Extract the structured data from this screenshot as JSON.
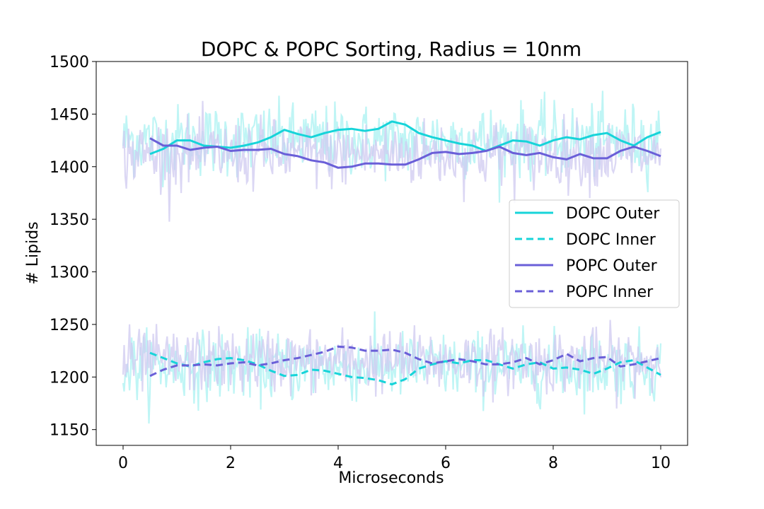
{
  "chart_data": {
    "type": "line",
    "title": "DOPC & POPC Sorting, Radius = 10nm",
    "xlabel": "Microseconds",
    "ylabel": "# Lipids",
    "xlim": [
      -0.5,
      10.5
    ],
    "ylim": [
      1135,
      1500
    ],
    "xticks": [
      "0",
      "2",
      "4",
      "6",
      "8",
      "10"
    ],
    "yticks": [
      "1150",
      "1200",
      "1250",
      "1300",
      "1350",
      "1400",
      "1450",
      "1500"
    ],
    "grid": false,
    "legend_position": "center-right",
    "colors": {
      "dopc": "#17d4d9",
      "popc": "#6a5fd8",
      "dopc_raw": "#aaf2f2",
      "popc_raw": "#cfc9f0"
    },
    "series": [
      {
        "name": "DOPC Outer",
        "style": "solid",
        "color": "#17d4d9",
        "x": [
          0.5,
          0.75,
          1.0,
          1.25,
          1.5,
          1.75,
          2.0,
          2.25,
          2.5,
          2.75,
          3.0,
          3.25,
          3.5,
          3.75,
          4.0,
          4.25,
          4.5,
          4.75,
          5.0,
          5.25,
          5.5,
          5.75,
          6.0,
          6.25,
          6.5,
          6.75,
          7.0,
          7.25,
          7.5,
          7.75,
          8.0,
          8.25,
          8.5,
          8.75,
          9.0,
          9.25,
          9.5,
          9.75,
          10.0
        ],
        "values": [
          1412,
          1417,
          1425,
          1425,
          1420,
          1419,
          1418,
          1420,
          1423,
          1428,
          1435,
          1431,
          1428,
          1432,
          1435,
          1436,
          1434,
          1436,
          1443,
          1440,
          1432,
          1428,
          1425,
          1422,
          1420,
          1415,
          1420,
          1425,
          1424,
          1420,
          1425,
          1428,
          1426,
          1430,
          1432,
          1425,
          1420,
          1428,
          1433
        ]
      },
      {
        "name": "DOPC Inner",
        "style": "dashed",
        "color": "#17d4d9",
        "x": [
          0.5,
          0.75,
          1.0,
          1.25,
          1.5,
          1.75,
          2.0,
          2.25,
          2.5,
          2.75,
          3.0,
          3.25,
          3.5,
          3.75,
          4.0,
          4.25,
          4.5,
          4.75,
          5.0,
          5.25,
          5.5,
          5.75,
          6.0,
          6.25,
          6.5,
          6.75,
          7.0,
          7.25,
          7.5,
          7.75,
          8.0,
          8.25,
          8.5,
          8.75,
          9.0,
          9.25,
          9.5,
          9.75,
          10.0
        ],
        "values": [
          1223,
          1218,
          1213,
          1210,
          1214,
          1217,
          1218,
          1216,
          1212,
          1206,
          1201,
          1202,
          1207,
          1206,
          1203,
          1200,
          1199,
          1197,
          1193,
          1198,
          1208,
          1212,
          1215,
          1213,
          1216,
          1216,
          1212,
          1208,
          1212,
          1214,
          1208,
          1209,
          1207,
          1203,
          1208,
          1214,
          1216,
          1209,
          1202
        ]
      },
      {
        "name": "POPC Outer",
        "style": "solid",
        "color": "#6a5fd8",
        "x": [
          0.5,
          0.75,
          1.0,
          1.25,
          1.5,
          1.75,
          2.0,
          2.25,
          2.5,
          2.75,
          3.0,
          3.25,
          3.5,
          3.75,
          4.0,
          4.25,
          4.5,
          4.75,
          5.0,
          5.25,
          5.5,
          5.75,
          6.0,
          6.25,
          6.5,
          6.75,
          7.0,
          7.25,
          7.5,
          7.75,
          8.0,
          8.25,
          8.5,
          8.75,
          9.0,
          9.25,
          9.5,
          9.75,
          10.0
        ],
        "values": [
          1427,
          1420,
          1420,
          1416,
          1418,
          1419,
          1415,
          1416,
          1416,
          1417,
          1412,
          1410,
          1406,
          1404,
          1399,
          1400,
          1403,
          1403,
          1402,
          1402,
          1407,
          1413,
          1414,
          1412,
          1413,
          1415,
          1419,
          1413,
          1411,
          1413,
          1409,
          1407,
          1412,
          1408,
          1408,
          1415,
          1419,
          1415,
          1410
        ]
      },
      {
        "name": "POPC Inner",
        "style": "dashed",
        "color": "#6a5fd8",
        "x": [
          0.5,
          0.75,
          1.0,
          1.25,
          1.5,
          1.75,
          2.0,
          2.25,
          2.5,
          2.75,
          3.0,
          3.25,
          3.5,
          3.75,
          4.0,
          4.25,
          4.5,
          4.75,
          5.0,
          5.25,
          5.5,
          5.75,
          6.0,
          6.25,
          6.5,
          6.75,
          7.0,
          7.25,
          7.5,
          7.75,
          8.0,
          8.25,
          8.5,
          8.75,
          9.0,
          9.25,
          9.5,
          9.75,
          10.0
        ],
        "values": [
          1201,
          1207,
          1211,
          1211,
          1212,
          1211,
          1213,
          1214,
          1211,
          1213,
          1216,
          1218,
          1221,
          1224,
          1229,
          1228,
          1225,
          1225,
          1226,
          1223,
          1217,
          1213,
          1215,
          1217,
          1215,
          1212,
          1212,
          1214,
          1218,
          1212,
          1216,
          1222,
          1215,
          1218,
          1219,
          1210,
          1212,
          1215,
          1218
        ]
      }
    ],
    "raw_fluctuation": {
      "samples": 500,
      "x_range": [
        0,
        10
      ],
      "dopc_outer_mean_sd": [
        1425,
        17
      ],
      "popc_outer_mean_sd": [
        1412,
        16
      ],
      "dopc_inner_mean_sd": [
        1210,
        16
      ],
      "popc_inner_mean_sd": [
        1215,
        15
      ]
    }
  }
}
